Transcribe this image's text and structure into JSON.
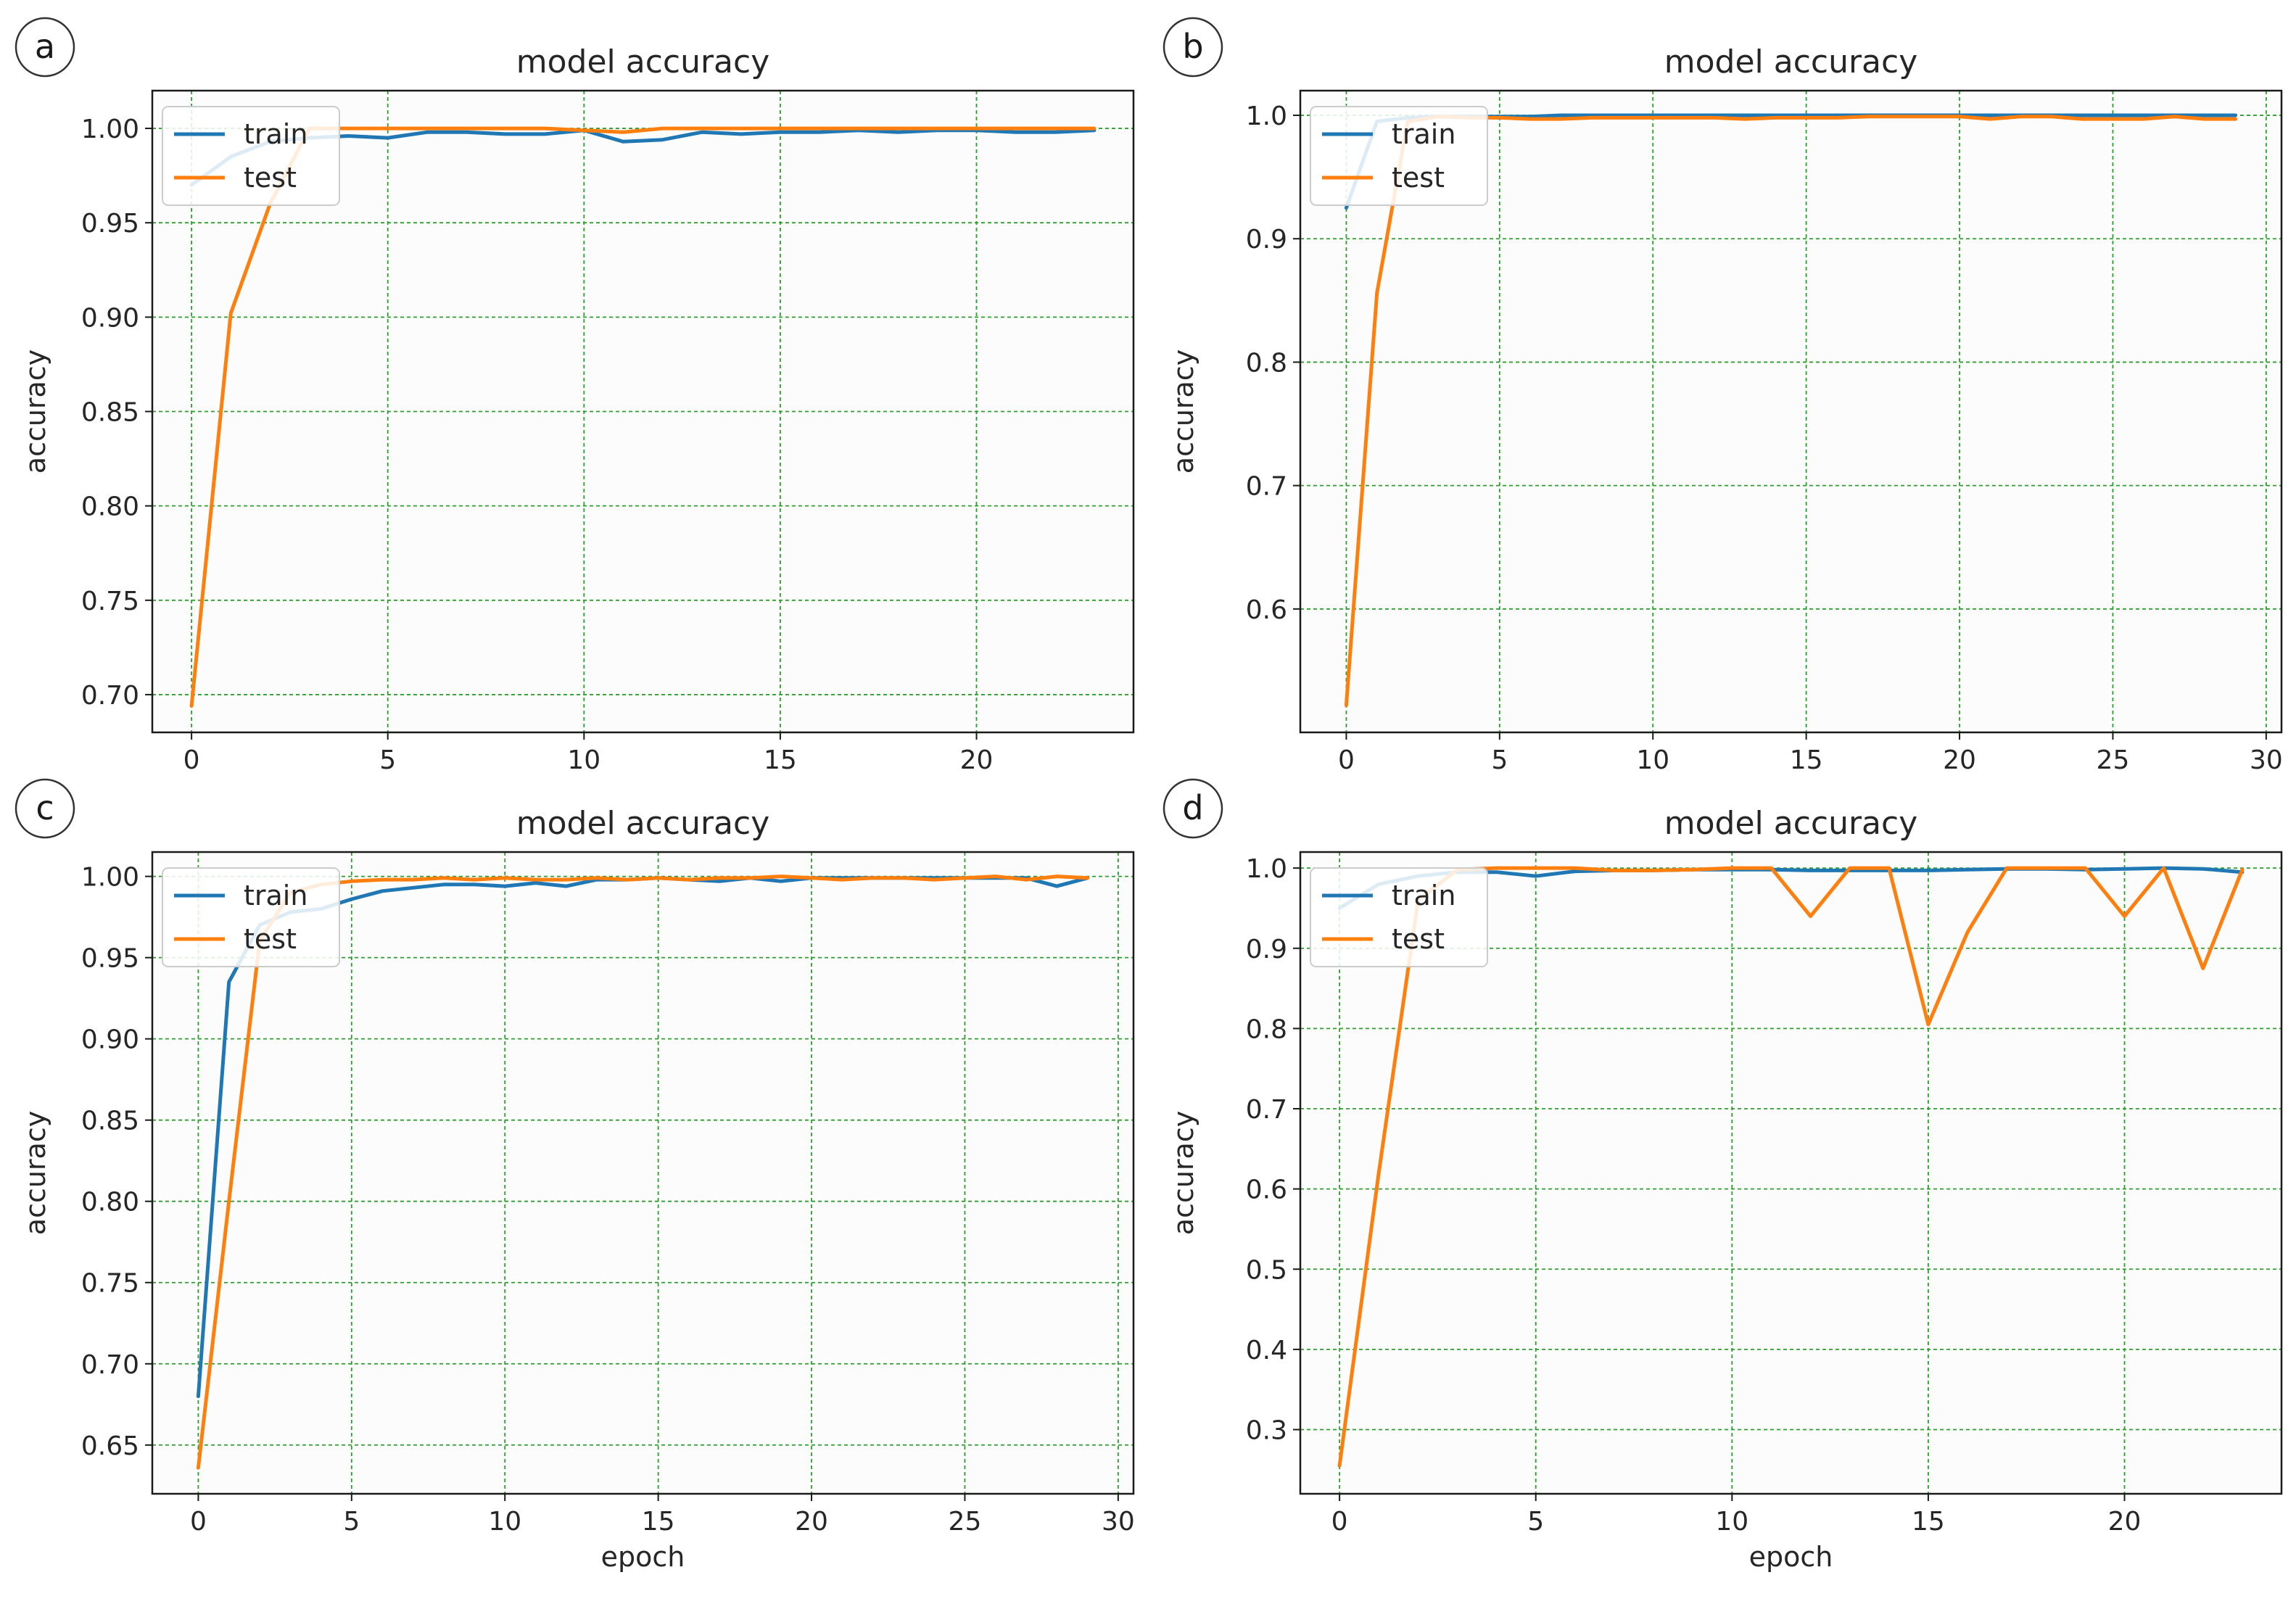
{
  "chart_data": [
    {
      "type": "line",
      "panel_label": "a",
      "title": "model accuracy",
      "xlabel": "",
      "ylabel": "accuracy",
      "xlim": [
        -1,
        24
      ],
      "ylim": [
        0.68,
        1.02
      ],
      "xticks": [
        0,
        5,
        10,
        15,
        20
      ],
      "yticks": [
        0.7,
        0.75,
        0.8,
        0.85,
        0.9,
        0.95,
        1.0
      ],
      "ytick_labels": [
        "0.70",
        "0.75",
        "0.80",
        "0.85",
        "0.90",
        "0.95",
        "1.00"
      ],
      "grid": true,
      "legend": [
        "train",
        "test"
      ],
      "legend_position": "top-left",
      "series": [
        {
          "name": "train",
          "color": "#1f77b4",
          "x": [
            0,
            1,
            2,
            3,
            4,
            5,
            6,
            7,
            8,
            9,
            10,
            11,
            12,
            13,
            14,
            15,
            16,
            17,
            18,
            19,
            20,
            21,
            22,
            23
          ],
          "values": [
            0.97,
            0.985,
            0.993,
            0.995,
            0.996,
            0.995,
            0.998,
            0.998,
            0.997,
            0.997,
            0.999,
            0.993,
            0.994,
            0.998,
            0.997,
            0.998,
            0.998,
            0.999,
            0.998,
            0.999,
            0.999,
            0.998,
            0.998,
            0.999
          ]
        },
        {
          "name": "test",
          "color": "#ff7f0e",
          "x": [
            0,
            1,
            2,
            3,
            4,
            5,
            6,
            7,
            8,
            9,
            10,
            11,
            12,
            13,
            14,
            15,
            16,
            17,
            18,
            19,
            20,
            21,
            22,
            23
          ],
          "values": [
            0.694,
            0.902,
            0.96,
            1.0,
            1.0,
            1.0,
            1.0,
            1.0,
            1.0,
            1.0,
            0.999,
            0.998,
            1.0,
            1.0,
            1.0,
            1.0,
            1.0,
            1.0,
            1.0,
            1.0,
            1.0,
            1.0,
            1.0,
            1.0
          ]
        }
      ]
    },
    {
      "type": "line",
      "panel_label": "b",
      "title": "model accuracy",
      "xlabel": "",
      "ylabel": "accuracy",
      "xlim": [
        -1.5,
        30.5
      ],
      "ylim": [
        0.5,
        1.02
      ],
      "xticks": [
        0,
        5,
        10,
        15,
        20,
        25,
        30
      ],
      "yticks": [
        0.6,
        0.7,
        0.8,
        0.9,
        1.0
      ],
      "ytick_labels": [
        "0.6",
        "0.7",
        "0.8",
        "0.9",
        "1.0"
      ],
      "grid": true,
      "legend": [
        "train",
        "test"
      ],
      "legend_position": "top-left",
      "series": [
        {
          "name": "train",
          "color": "#1f77b4",
          "x": [
            0,
            1,
            2,
            3,
            4,
            5,
            6,
            7,
            8,
            9,
            10,
            11,
            12,
            13,
            14,
            15,
            16,
            17,
            18,
            19,
            20,
            21,
            22,
            23,
            24,
            25,
            26,
            27,
            28,
            29
          ],
          "values": [
            0.925,
            0.995,
            0.998,
            0.999,
            0.999,
            0.999,
            0.999,
            1.0,
            1.0,
            1.0,
            1.0,
            1.0,
            1.0,
            1.0,
            1.0,
            1.0,
            1.0,
            1.0,
            1.0,
            1.0,
            1.0,
            1.0,
            1.0,
            1.0,
            1.0,
            1.0,
            1.0,
            1.0,
            1.0,
            1.0
          ]
        },
        {
          "name": "test",
          "color": "#ff7f0e",
          "x": [
            0,
            1,
            2,
            3,
            4,
            5,
            6,
            7,
            8,
            9,
            10,
            11,
            12,
            13,
            14,
            15,
            16,
            17,
            18,
            19,
            20,
            21,
            22,
            23,
            24,
            25,
            26,
            27,
            28,
            29
          ],
          "values": [
            0.522,
            0.856,
            0.995,
            0.999,
            0.998,
            0.998,
            0.997,
            0.997,
            0.998,
            0.998,
            0.998,
            0.998,
            0.998,
            0.997,
            0.998,
            0.998,
            0.998,
            0.999,
            0.999,
            0.999,
            0.999,
            0.997,
            0.999,
            0.999,
            0.997,
            0.997,
            0.997,
            0.999,
            0.997,
            0.997
          ]
        }
      ]
    },
    {
      "type": "line",
      "panel_label": "c",
      "title": "model accuracy",
      "xlabel": "epoch",
      "ylabel": "accuracy",
      "xlim": [
        -1.5,
        30.5
      ],
      "ylim": [
        0.62,
        1.015
      ],
      "xticks": [
        0,
        5,
        10,
        15,
        20,
        25,
        30
      ],
      "yticks": [
        0.65,
        0.7,
        0.75,
        0.8,
        0.85,
        0.9,
        0.95,
        1.0
      ],
      "ytick_labels": [
        "0.65",
        "0.70",
        "0.75",
        "0.80",
        "0.85",
        "0.90",
        "0.95",
        "1.00"
      ],
      "grid": true,
      "legend": [
        "train",
        "test"
      ],
      "legend_position": "top-left",
      "series": [
        {
          "name": "train",
          "color": "#1f77b4",
          "x": [
            0,
            1,
            2,
            3,
            4,
            5,
            6,
            7,
            8,
            9,
            10,
            11,
            12,
            13,
            14,
            15,
            16,
            17,
            18,
            19,
            20,
            21,
            22,
            23,
            24,
            25,
            26,
            27,
            28,
            29
          ],
          "values": [
            0.68,
            0.935,
            0.97,
            0.978,
            0.98,
            0.986,
            0.991,
            0.993,
            0.995,
            0.995,
            0.994,
            0.996,
            0.994,
            0.998,
            0.998,
            0.999,
            0.998,
            0.997,
            0.999,
            0.997,
            0.999,
            0.999,
            0.999,
            0.999,
            0.999,
            0.999,
            0.999,
            0.999,
            0.994,
            0.999
          ]
        },
        {
          "name": "test",
          "color": "#ff7f0e",
          "x": [
            0,
            1,
            2,
            3,
            4,
            5,
            6,
            7,
            8,
            9,
            10,
            11,
            12,
            13,
            14,
            15,
            16,
            17,
            18,
            19,
            20,
            21,
            22,
            23,
            24,
            25,
            26,
            27,
            28,
            29
          ],
          "values": [
            0.636,
            0.8,
            0.96,
            0.99,
            0.995,
            0.997,
            0.998,
            0.998,
            0.999,
            0.998,
            0.999,
            0.998,
            0.998,
            0.999,
            0.998,
            0.999,
            0.998,
            0.999,
            0.999,
            1.0,
            0.999,
            0.998,
            0.999,
            0.999,
            0.998,
            0.999,
            1.0,
            0.998,
            1.0,
            0.999
          ]
        }
      ]
    },
    {
      "type": "line",
      "panel_label": "d",
      "title": "model accuracy",
      "xlabel": "epoch",
      "ylabel": "accuracy",
      "xlim": [
        -1,
        24
      ],
      "ylim": [
        0.22,
        1.02
      ],
      "xticks": [
        0,
        5,
        10,
        15,
        20
      ],
      "yticks": [
        0.3,
        0.4,
        0.5,
        0.6,
        0.7,
        0.8,
        0.9,
        1.0
      ],
      "ytick_labels": [
        "0.3",
        "0.4",
        "0.5",
        "0.6",
        "0.7",
        "0.8",
        "0.9",
        "1.0"
      ],
      "grid": true,
      "legend": [
        "train",
        "test"
      ],
      "legend_position": "top-left",
      "series": [
        {
          "name": "train",
          "color": "#1f77b4",
          "x": [
            0,
            1,
            2,
            3,
            4,
            5,
            6,
            7,
            8,
            9,
            10,
            11,
            12,
            13,
            14,
            15,
            16,
            17,
            18,
            19,
            20,
            21,
            22,
            23
          ],
          "values": [
            0.95,
            0.98,
            0.99,
            0.995,
            0.995,
            0.99,
            0.996,
            0.997,
            0.997,
            0.998,
            0.998,
            0.998,
            0.997,
            0.997,
            0.997,
            0.997,
            0.998,
            0.999,
            0.999,
            0.998,
            0.999,
            1.0,
            0.999,
            0.995
          ]
        },
        {
          "name": "test",
          "color": "#ff7f0e",
          "x": [
            0,
            1,
            2,
            3,
            4,
            5,
            6,
            7,
            8,
            9,
            10,
            11,
            12,
            13,
            14,
            15,
            16,
            17,
            18,
            19,
            20,
            21,
            22,
            23
          ],
          "values": [
            0.255,
            0.62,
            0.96,
            0.998,
            1.0,
            1.0,
            1.0,
            0.997,
            0.997,
            0.998,
            1.0,
            1.0,
            0.94,
            1.0,
            1.0,
            0.805,
            0.92,
            1.0,
            1.0,
            1.0,
            0.94,
            1.0,
            0.875,
            0.998
          ]
        }
      ]
    }
  ]
}
